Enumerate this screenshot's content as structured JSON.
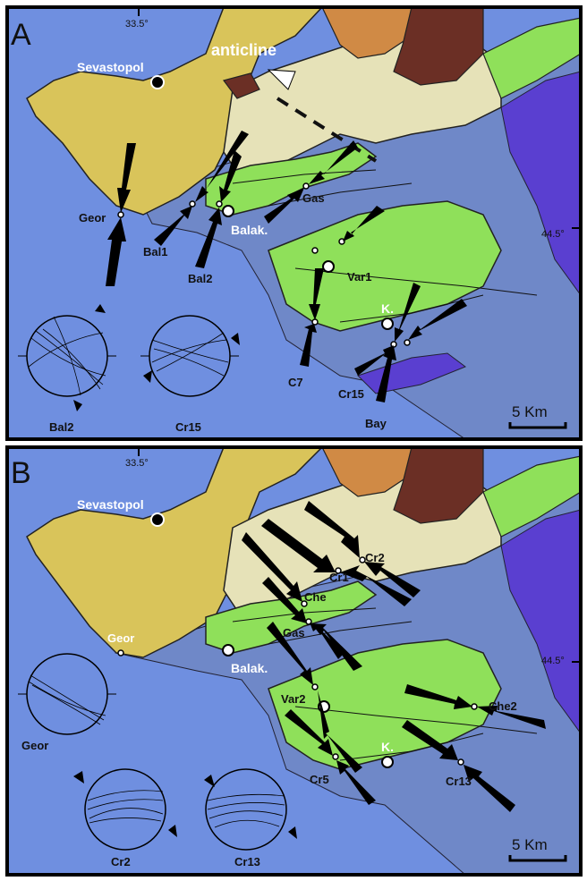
{
  "panels": [
    {
      "letter": "A",
      "coord_top": "33.5°",
      "coord_right": "44.5°",
      "scale": "5 Km",
      "city": "Sevastopol",
      "structure": "anticline",
      "balak": "Balak.",
      "k": "K.",
      "sites": [
        "Geor",
        "Bal1",
        "Bal2",
        "Gas",
        "Var1",
        "C7",
        "Cr15",
        "Bay"
      ],
      "stereonets": [
        "Bal2",
        "Cr15"
      ]
    },
    {
      "letter": "B",
      "coord_top": "33.5°",
      "coord_right": "44.5°",
      "scale": "5 Km",
      "city": "Sevastopol",
      "balak": "Balak.",
      "k": "K.",
      "sites": [
        "Geor",
        "Cr1",
        "Cr2",
        "Che",
        "Gas",
        "Var2",
        "Cr5",
        "Che2",
        "Cr13"
      ],
      "stereonets": [
        "Geor",
        "Cr2",
        "Cr13"
      ]
    }
  ],
  "colors": {
    "sea": "#6f8fe0",
    "yellow": "#d9c45a",
    "cream": "#e6e2b8",
    "green": "#8fe05a",
    "blue": "#6f88c8",
    "purple": "#5a3fd0",
    "orange": "#d08a45",
    "brown": "#6b2f25"
  }
}
